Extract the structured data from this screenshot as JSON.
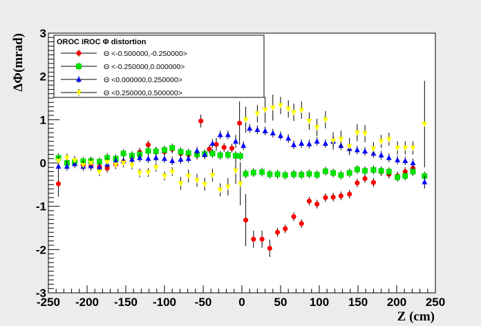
{
  "chart_data": {
    "type": "scatter",
    "title": "",
    "xlabel": "Z (cm)",
    "ylabel": "ΔΦ(mrad)",
    "xlim": [
      -250,
      250
    ],
    "ylim": [
      -3,
      3
    ],
    "x_ticks": [
      "-250",
      "-200",
      "-150",
      "-100",
      "-50",
      "0",
      "50",
      "100",
      "150",
      "200",
      "250"
    ],
    "y_ticks": [
      "-3",
      "-2",
      "-1",
      "0",
      "1",
      "2",
      "3"
    ],
    "grid": false,
    "legend": {
      "placement": "top-left",
      "title": "OROC  IROC Φ distortion",
      "entries": [
        {
          "label": "Θ <-0.500000,-0.250000>",
          "color": "#ff0000",
          "marker": "circle"
        },
        {
          "label": "Θ <-0.250000,0.000000>",
          "color": "#00e000",
          "marker": "square"
        },
        {
          "label": "Θ <0.000000,0.250000>",
          "color": "#0000ff",
          "marker": "triangle-up"
        },
        {
          "label": "Θ <0.250000,0.500000>",
          "color": "#ffff00",
          "marker": "triangle-down"
        }
      ]
    },
    "series": [
      {
        "color": "#ff0000",
        "marker": "circle",
        "points": [
          [
            -237,
            -0.48,
            0.3
          ],
          [
            -226,
            0.02,
            0.1
          ],
          [
            -216,
            0.03,
            0.1
          ],
          [
            -205,
            -0.05,
            0.1
          ],
          [
            -195,
            -0.07,
            0.1
          ],
          [
            -184,
            -0.09,
            0.1
          ],
          [
            -174,
            -0.12,
            0.1
          ],
          [
            -163,
            -0.03,
            0.1
          ],
          [
            -153,
            0.03,
            0.1
          ],
          [
            -142,
            0.13,
            0.1
          ],
          [
            -132,
            0.25,
            0.1
          ],
          [
            -121,
            0.42,
            0.1
          ],
          [
            -111,
            0.27,
            0.1
          ],
          [
            -100,
            0.26,
            0.1
          ],
          [
            -90,
            0.32,
            0.1
          ],
          [
            -79,
            0.22,
            0.1
          ],
          [
            -69,
            0.19,
            0.1
          ],
          [
            -58,
            0.18,
            0.1
          ],
          [
            -53,
            0.97,
            0.15
          ],
          [
            -42,
            0.32,
            0.1
          ],
          [
            -33,
            0.43,
            0.15
          ],
          [
            -23,
            0.36,
            0.1
          ],
          [
            -13,
            0.34,
            0.1
          ],
          [
            -3,
            0.92,
            0.5
          ],
          [
            5,
            -1.32,
            0.6
          ],
          [
            15,
            -1.76,
            0.2
          ],
          [
            26,
            -1.76,
            0.2
          ],
          [
            36,
            -1.97,
            0.2
          ],
          [
            46,
            -1.6,
            0.1
          ],
          [
            56,
            -1.52,
            0.1
          ],
          [
            67,
            -1.24,
            0.1
          ],
          [
            77,
            -1.4,
            0.1
          ],
          [
            87,
            -0.88,
            0.1
          ],
          [
            97,
            -0.95,
            0.1
          ],
          [
            108,
            -0.8,
            0.1
          ],
          [
            118,
            -0.79,
            0.1
          ],
          [
            128,
            -0.76,
            0.1
          ],
          [
            139,
            -0.72,
            0.1
          ],
          [
            149,
            -0.46,
            0.1
          ],
          [
            159,
            -0.36,
            0.1
          ],
          [
            170,
            -0.45,
            0.1
          ],
          [
            180,
            -0.2,
            0.1
          ],
          [
            190,
            -0.26,
            0.1
          ],
          [
            201,
            -0.3,
            0.1
          ],
          [
            211,
            -0.2,
            0.1
          ],
          [
            221,
            -0.12,
            0.1
          ]
        ]
      },
      {
        "color": "#00e000",
        "marker": "square",
        "points": [
          [
            -237,
            0.12,
            0.1
          ],
          [
            -226,
            0.0,
            0.1
          ],
          [
            -216,
            0.02,
            0.1
          ],
          [
            -205,
            0.04,
            0.1
          ],
          [
            -195,
            0.05,
            0.1
          ],
          [
            -184,
            0.03,
            0.1
          ],
          [
            -174,
            0.12,
            0.1
          ],
          [
            -163,
            0.1,
            0.1
          ],
          [
            -153,
            0.22,
            0.1
          ],
          [
            -142,
            0.17,
            0.1
          ],
          [
            -132,
            0.2,
            0.1
          ],
          [
            -121,
            0.28,
            0.1
          ],
          [
            -111,
            0.27,
            0.1
          ],
          [
            -100,
            0.3,
            0.1
          ],
          [
            -90,
            0.35,
            0.1
          ],
          [
            -79,
            0.26,
            0.1
          ],
          [
            -69,
            0.23,
            0.1
          ],
          [
            -58,
            0.2,
            0.1
          ],
          [
            -48,
            0.21,
            0.1
          ],
          [
            -38,
            0.22,
            0.1
          ],
          [
            -28,
            0.18,
            0.1
          ],
          [
            -18,
            0.19,
            0.1
          ],
          [
            -8,
            0.17,
            0.1
          ],
          [
            -2,
            0.16,
            0.1
          ],
          [
            5,
            -0.25,
            0.1
          ],
          [
            15,
            -0.22,
            0.1
          ],
          [
            26,
            -0.21,
            0.1
          ],
          [
            36,
            -0.26,
            0.1
          ],
          [
            46,
            -0.26,
            0.1
          ],
          [
            56,
            -0.28,
            0.1
          ],
          [
            67,
            -0.26,
            0.1
          ],
          [
            77,
            -0.27,
            0.1
          ],
          [
            87,
            -0.25,
            0.1
          ],
          [
            97,
            -0.27,
            0.1
          ],
          [
            108,
            -0.19,
            0.1
          ],
          [
            118,
            -0.23,
            0.1
          ],
          [
            128,
            -0.28,
            0.1
          ],
          [
            139,
            -0.23,
            0.1
          ],
          [
            149,
            -0.15,
            0.1
          ],
          [
            159,
            -0.18,
            0.1
          ],
          [
            170,
            -0.16,
            0.1
          ],
          [
            180,
            -0.18,
            0.1
          ],
          [
            190,
            -0.2,
            0.1
          ],
          [
            201,
            -0.33,
            0.1
          ],
          [
            211,
            -0.3,
            0.1
          ],
          [
            221,
            -0.2,
            0.1
          ],
          [
            236,
            -0.3,
            0.1
          ]
        ]
      },
      {
        "color": "#0000ff",
        "marker": "triangle-up",
        "points": [
          [
            -237,
            -0.08,
            0.1
          ],
          [
            -226,
            -0.08,
            0.1
          ],
          [
            -216,
            -0.02,
            0.1
          ],
          [
            -205,
            -0.08,
            0.1
          ],
          [
            -195,
            -0.07,
            0.1
          ],
          [
            -184,
            -0.1,
            0.1
          ],
          [
            -174,
            -0.03,
            0.1
          ],
          [
            -163,
            0.05,
            0.1
          ],
          [
            -153,
            0.05,
            0.1
          ],
          [
            -142,
            0.08,
            0.1
          ],
          [
            -132,
            0.12,
            0.1
          ],
          [
            -121,
            0.1,
            0.1
          ],
          [
            -111,
            0.12,
            0.1
          ],
          [
            -100,
            0.1,
            0.1
          ],
          [
            -90,
            0.05,
            0.1
          ],
          [
            -79,
            0.08,
            0.1
          ],
          [
            -69,
            0.1,
            0.1
          ],
          [
            -58,
            0.28,
            0.1
          ],
          [
            -48,
            0.19,
            0.1
          ],
          [
            -38,
            0.45,
            0.1
          ],
          [
            -28,
            0.65,
            0.1
          ],
          [
            -18,
            0.65,
            0.1
          ],
          [
            -8,
            0.5,
            0.15
          ],
          [
            2,
            0.4,
            0.1
          ],
          [
            10,
            0.8,
            0.1
          ],
          [
            20,
            0.77,
            0.1
          ],
          [
            30,
            0.74,
            0.1
          ],
          [
            40,
            0.69,
            0.1
          ],
          [
            50,
            0.63,
            0.1
          ],
          [
            60,
            0.57,
            0.1
          ],
          [
            67,
            0.42,
            0.1
          ],
          [
            77,
            0.45,
            0.1
          ],
          [
            87,
            0.44,
            0.1
          ],
          [
            97,
            0.5,
            0.1
          ],
          [
            108,
            0.45,
            0.1
          ],
          [
            118,
            0.5,
            0.1
          ],
          [
            128,
            0.4,
            0.1
          ],
          [
            139,
            0.33,
            0.1
          ],
          [
            149,
            0.3,
            0.1
          ],
          [
            159,
            0.27,
            0.1
          ],
          [
            170,
            0.22,
            0.1
          ],
          [
            180,
            0.18,
            0.1
          ],
          [
            190,
            0.12,
            0.1
          ],
          [
            201,
            0.07,
            0.1
          ],
          [
            211,
            0.05,
            0.1
          ],
          [
            221,
            0.0,
            0.1
          ],
          [
            236,
            -0.44,
            0.15
          ]
        ]
      },
      {
        "color": "#ffff00",
        "marker": "triangle-down",
        "points": [
          [
            -237,
            0.05,
            0.1
          ],
          [
            -226,
            0.12,
            0.1
          ],
          [
            -216,
            0.06,
            0.1
          ],
          [
            -205,
            -0.05,
            0.1
          ],
          [
            -195,
            0.0,
            0.1
          ],
          [
            -184,
            -0.2,
            0.1
          ],
          [
            -174,
            0.02,
            0.1
          ],
          [
            -163,
            -0.04,
            0.1
          ],
          [
            -153,
            0.0,
            0.1
          ],
          [
            -142,
            -0.05,
            0.1
          ],
          [
            -132,
            -0.23,
            0.1
          ],
          [
            -121,
            -0.22,
            0.1
          ],
          [
            -111,
            -0.1,
            0.1
          ],
          [
            -100,
            -0.3,
            0.1
          ],
          [
            -90,
            -0.2,
            0.1
          ],
          [
            -79,
            -0.47,
            0.15
          ],
          [
            -69,
            -0.3,
            0.15
          ],
          [
            -58,
            -0.4,
            0.15
          ],
          [
            -48,
            -0.49,
            0.15
          ],
          [
            -38,
            -0.28,
            0.15
          ],
          [
            -28,
            -0.62,
            0.15
          ],
          [
            -18,
            -0.55,
            0.2
          ],
          [
            -8,
            -0.18,
            0.3
          ],
          [
            -2,
            -0.48,
            0.5
          ],
          [
            5,
            1.0,
            0.3
          ],
          [
            20,
            1.14,
            0.2
          ],
          [
            30,
            1.23,
            0.3
          ],
          [
            40,
            1.28,
            0.3
          ],
          [
            50,
            1.33,
            0.2
          ],
          [
            60,
            1.25,
            0.2
          ],
          [
            67,
            1.17,
            0.2
          ],
          [
            77,
            1.22,
            0.2
          ],
          [
            87,
            0.97,
            0.2
          ],
          [
            97,
            0.82,
            0.2
          ],
          [
            108,
            1.0,
            0.2
          ],
          [
            118,
            0.51,
            0.2
          ],
          [
            128,
            0.55,
            0.2
          ],
          [
            139,
            0.38,
            0.2
          ],
          [
            149,
            0.7,
            0.2
          ],
          [
            159,
            0.68,
            0.2
          ],
          [
            170,
            0.33,
            0.15
          ],
          [
            180,
            0.5,
            0.15
          ],
          [
            190,
            0.55,
            0.15
          ],
          [
            201,
            0.35,
            0.15
          ],
          [
            211,
            0.35,
            0.15
          ],
          [
            221,
            0.35,
            0.15
          ],
          [
            236,
            0.9,
            1.0
          ]
        ]
      }
    ]
  }
}
